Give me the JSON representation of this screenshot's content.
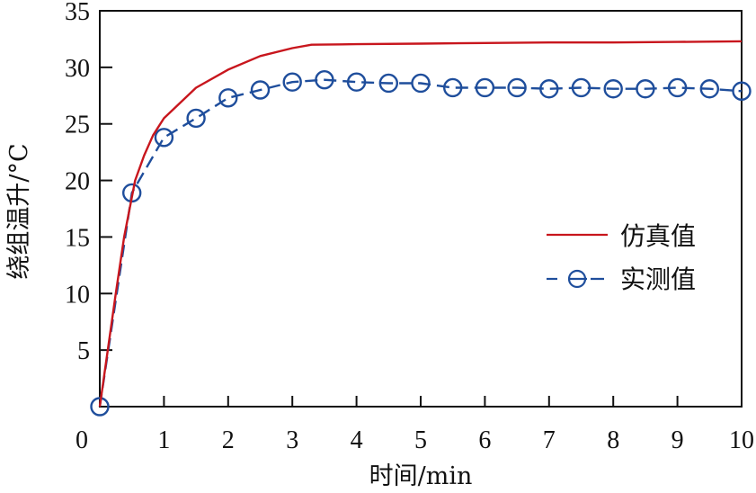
{
  "chart_data": {
    "type": "line",
    "title": "",
    "xlabel": "时间/min",
    "ylabel": "绕组温升/°C",
    "xlim": [
      0,
      10
    ],
    "ylim": [
      0,
      35
    ],
    "xticks": [
      0,
      1,
      2,
      3,
      4,
      5,
      6,
      7,
      8,
      9,
      10
    ],
    "yticks": [
      0,
      5,
      10,
      15,
      20,
      25,
      30,
      35
    ],
    "ytick_labels_shown": [
      "5",
      "10",
      "15",
      "20",
      "25",
      "30",
      "35"
    ],
    "grid": false,
    "legend_position": "center-right",
    "series": [
      {
        "name": "仿真值",
        "style": "solid",
        "marker": "none",
        "color": "#c8161d",
        "x": [
          0,
          0.125,
          0.25,
          0.38,
          0.55,
          0.69,
          0.83,
          1.0,
          1.5,
          2.0,
          2.5,
          3.0,
          3.3,
          4.0,
          5.0,
          6.0,
          7.0,
          8.0,
          9.0,
          10.0
        ],
        "y": [
          0,
          5,
          10,
          15,
          20,
          22.2,
          24,
          25.5,
          28.2,
          29.8,
          31.0,
          31.7,
          32.0,
          32.05,
          32.1,
          32.15,
          32.2,
          32.2,
          32.25,
          32.3
        ]
      },
      {
        "name": "实测值",
        "style": "dashed",
        "marker": "circle",
        "color": "#1f4e9c",
        "x": [
          0,
          0.5,
          1.0,
          1.5,
          2.0,
          2.5,
          3.0,
          3.5,
          4.0,
          4.5,
          5.0,
          5.5,
          6.0,
          6.5,
          7.0,
          7.5,
          8.0,
          8.5,
          9.0,
          9.5,
          10.0
        ],
        "y": [
          0,
          18.9,
          23.8,
          25.5,
          27.3,
          28.0,
          28.7,
          28.9,
          28.7,
          28.6,
          28.6,
          28.2,
          28.2,
          28.2,
          28.1,
          28.2,
          28.1,
          28.1,
          28.2,
          28.1,
          27.9
        ]
      }
    ]
  },
  "legend": {
    "items": [
      {
        "label": "仿真值",
        "color": "#c8161d"
      },
      {
        "label": "实测值",
        "color": "#1f4e9c"
      }
    ]
  },
  "axes": {
    "x_title": "时间/min",
    "y_title": "绕组温升/°C"
  }
}
